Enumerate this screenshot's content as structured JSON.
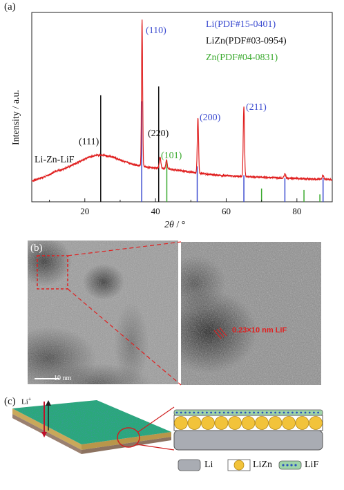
{
  "panel_a": {
    "label": "(a)",
    "ylabel": "Intensity / a.u.",
    "xlabel_var": "2θ",
    "xlabel_unit": " / °",
    "sample_label": "Li-Zn-LiF",
    "colors": {
      "li": "#3b4bd0",
      "lizn": "#111111",
      "zn": "#3aaa2e",
      "trace": "#e02020"
    },
    "legend": [
      {
        "text": "Li(PDF#15-0401)",
        "color": "#3b4bd0"
      },
      {
        "text": "LiZn(PDF#03-0954)",
        "color": "#111111"
      },
      {
        "text": "Zn(PDF#04-0831)",
        "color": "#3aaa2e"
      }
    ],
    "peak_labels": [
      {
        "text": "(111)",
        "color": "#111111"
      },
      {
        "text": "(110)",
        "color": "#3b4bd0"
      },
      {
        "text": "(220)",
        "color": "#111111"
      },
      {
        "text": "(101)",
        "color": "#3aaa2e"
      },
      {
        "text": "(200)",
        "color": "#3b4bd0"
      },
      {
        "text": "(211)",
        "color": "#3b4bd0"
      }
    ],
    "chart_data": {
      "type": "line",
      "xlim": [
        5,
        90
      ],
      "xticks": [
        "20",
        "40",
        "60",
        "80"
      ],
      "xtick_values": [
        20,
        40,
        60,
        80
      ],
      "measured_peaks_2theta": [
        36.2,
        41.3,
        43.1,
        52.0,
        65.0
      ],
      "reference_sticks": [
        {
          "phase": "LiZn",
          "color": "#111111",
          "positions": [
            24.5,
            40.9
          ],
          "rel_heights": [
            0.72,
            0.78
          ]
        },
        {
          "phase": "Li",
          "color": "#3b4bd0",
          "positions": [
            36.1,
            51.8,
            65.0,
            76.6,
            87.4
          ],
          "rel_heights": [
            0.68,
            0.24,
            0.18,
            0.16,
            0.16
          ]
        },
        {
          "phase": "Zn",
          "color": "#3aaa2e",
          "positions": [
            43.2,
            70.0,
            82.0,
            86.5
          ],
          "rel_heights": [
            0.28,
            0.09,
            0.08,
            0.05
          ]
        }
      ]
    }
  },
  "panel_b": {
    "label": "(b)",
    "scale_bar": "10 nm",
    "lattice_label": "0.23×10 nm LiF"
  },
  "panel_c": {
    "label": "(c)",
    "ion_label": "Li",
    "ion_charge": "+",
    "legend": [
      "Li",
      "LiZn",
      "LiF"
    ]
  }
}
